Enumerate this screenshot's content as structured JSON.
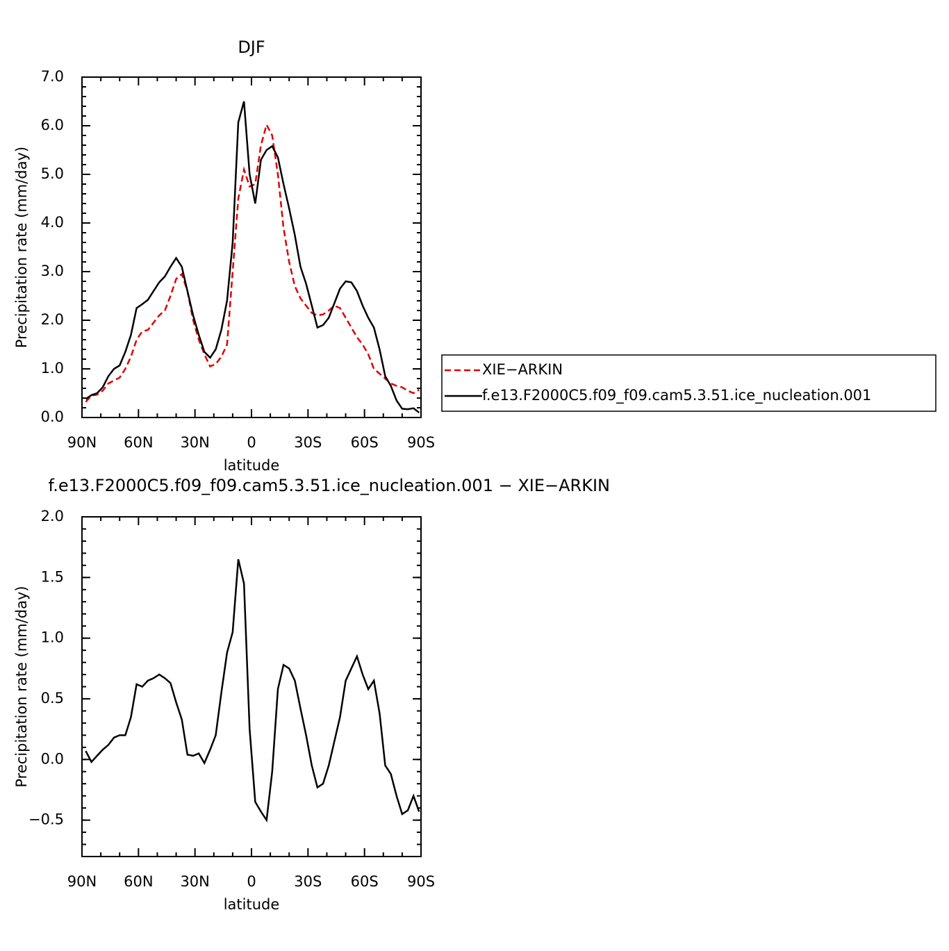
{
  "chart_data": [
    {
      "type": "line",
      "title": "DJF",
      "xlabel": "latitude",
      "ylabel": "Precipitation rate (mm/day)",
      "x": [
        88,
        85,
        82,
        79,
        76,
        73,
        70,
        67,
        64,
        61,
        58,
        55,
        52,
        49,
        46,
        43,
        40,
        37,
        34,
        31,
        28,
        25,
        22,
        19,
        16,
        13,
        10,
        7,
        4,
        1,
        -2,
        -5,
        -8,
        -11,
        -14,
        -17,
        -20,
        -23,
        -26,
        -29,
        -32,
        -35,
        -38,
        -41,
        -44,
        -47,
        -50,
        -53,
        -56,
        -59,
        -62,
        -65,
        -68,
        -71,
        -74,
        -77,
        -80,
        -83,
        -86,
        -89
      ],
      "xlim": [
        90,
        -90
      ],
      "xticks": [
        {
          "value": 90,
          "label": "90N"
        },
        {
          "value": 60,
          "label": "60N"
        },
        {
          "value": 30,
          "label": "30N"
        },
        0,
        {
          "value": -30,
          "label": "30S"
        },
        {
          "value": -60,
          "label": "60S"
        },
        {
          "value": -90,
          "label": "90S"
        }
      ],
      "ylim": [
        0,
        7
      ],
      "yticks": [
        {
          "value": 0,
          "label": "0.0"
        },
        {
          "value": 1,
          "label": "1.0"
        },
        {
          "value": 2,
          "label": "2.0"
        },
        {
          "value": 3,
          "label": "3.0"
        },
        {
          "value": 4,
          "label": "4.0"
        },
        {
          "value": 5,
          "label": "5.0"
        },
        {
          "value": 6,
          "label": "6.0"
        },
        {
          "value": 7,
          "label": "7.0"
        }
      ],
      "legend": "right",
      "series": [
        {
          "name": "XIE−ARKIN",
          "color": "#e00000",
          "dashed": true,
          "values": [
            0.32,
            0.45,
            0.47,
            0.55,
            0.7,
            0.76,
            0.82,
            1.0,
            1.25,
            1.6,
            1.77,
            1.8,
            1.95,
            2.1,
            2.2,
            2.5,
            2.85,
            2.95,
            2.6,
            2.0,
            1.6,
            1.3,
            1.05,
            1.1,
            1.25,
            1.5,
            3.0,
            4.5,
            5.1,
            4.75,
            4.8,
            5.6,
            6.02,
            5.8,
            5.0,
            3.9,
            3.2,
            2.7,
            2.45,
            2.3,
            2.15,
            2.1,
            2.12,
            2.2,
            2.3,
            2.25,
            2.05,
            1.85,
            1.65,
            1.5,
            1.3,
            1.0,
            0.9,
            0.8,
            0.7,
            0.65,
            0.62,
            0.55,
            0.5,
            0.57
          ]
        },
        {
          "name": "f.e13.F2000C5.f09_f09.cam5.3.51.ice_nucleation.001",
          "color": "#000000",
          "dashed": false,
          "values": [
            0.38,
            0.46,
            0.5,
            0.62,
            0.85,
            1.0,
            1.07,
            1.35,
            1.7,
            2.25,
            2.33,
            2.42,
            2.6,
            2.78,
            2.9,
            3.1,
            3.28,
            3.1,
            2.6,
            2.1,
            1.7,
            1.35,
            1.23,
            1.4,
            1.8,
            2.4,
            3.6,
            6.07,
            6.5,
            5.0,
            4.4,
            5.3,
            5.5,
            5.58,
            5.35,
            4.8,
            4.3,
            3.75,
            3.1,
            2.75,
            2.3,
            1.85,
            1.9,
            2.05,
            2.35,
            2.65,
            2.8,
            2.78,
            2.6,
            2.3,
            2.05,
            1.85,
            1.4,
            0.85,
            0.65,
            0.35,
            0.18,
            0.17,
            0.19,
            0.1
          ]
        }
      ]
    },
    {
      "type": "line",
      "title": "f.e13.F2000C5.f09_f09.cam5.3.51.ice_nucleation.001 − XIE−ARKIN",
      "xlabel": "latitude",
      "ylabel": "Precipitation rate (mm/day)",
      "x": [
        88,
        85,
        82,
        79,
        76,
        73,
        70,
        67,
        64,
        61,
        58,
        55,
        52,
        49,
        46,
        43,
        40,
        37,
        34,
        31,
        28,
        25,
        22,
        19,
        16,
        13,
        10,
        7,
        4,
        1,
        -2,
        -5,
        -8,
        -11,
        -14,
        -17,
        -20,
        -23,
        -26,
        -29,
        -32,
        -35,
        -38,
        -41,
        -44,
        -47,
        -50,
        -53,
        -56,
        -59,
        -62,
        -65,
        -68,
        -71,
        -74,
        -77,
        -80,
        -83,
        -86,
        -89
      ],
      "xlim": [
        90,
        -90
      ],
      "xticks": [
        {
          "value": 90,
          "label": "90N"
        },
        {
          "value": 60,
          "label": "60N"
        },
        {
          "value": 30,
          "label": "30N"
        },
        0,
        {
          "value": -30,
          "label": "30S"
        },
        {
          "value": -60,
          "label": "60S"
        },
        {
          "value": -90,
          "label": "90S"
        }
      ],
      "ylim": [
        -0.8,
        2.0
      ],
      "yticks": [
        {
          "value": -0.5,
          "label": "−0.5"
        },
        {
          "value": 0,
          "label": "0.0"
        },
        0.5,
        {
          "value": 1,
          "label": "1.0"
        },
        1.5,
        {
          "value": 2,
          "label": "2.0"
        }
      ],
      "series": [
        {
          "color": "#000000",
          "dashed": false,
          "values": [
            0.07,
            -0.02,
            0.03,
            0.08,
            0.12,
            0.18,
            0.2,
            0.2,
            0.35,
            0.62,
            0.6,
            0.65,
            0.67,
            0.7,
            0.67,
            0.63,
            0.47,
            0.33,
            0.04,
            0.03,
            0.05,
            -0.03,
            0.08,
            0.2,
            0.55,
            0.88,
            1.05,
            1.65,
            1.45,
            0.25,
            -0.35,
            -0.43,
            -0.5,
            -0.1,
            0.58,
            0.78,
            0.75,
            0.65,
            0.42,
            0.2,
            -0.05,
            -0.23,
            -0.2,
            -0.05,
            0.15,
            0.35,
            0.65,
            0.75,
            0.85,
            0.7,
            0.58,
            0.65,
            0.38,
            -0.05,
            -0.12,
            -0.3,
            -0.45,
            -0.42,
            -0.3,
            -0.43
          ]
        }
      ]
    }
  ]
}
